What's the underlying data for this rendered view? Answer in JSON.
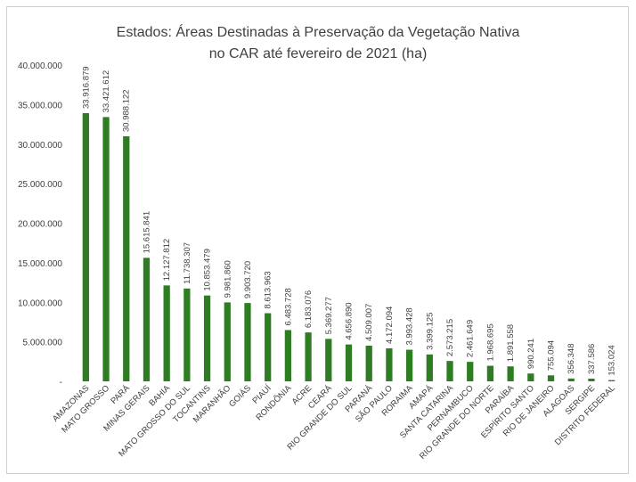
{
  "chart_data": {
    "type": "bar",
    "title": "Estados: Áreas Destinadas à Preservação da Vegetação Nativa",
    "subtitle": "no CAR até fevereiro de 2021 (ha)",
    "xlabel": "",
    "ylabel": "",
    "ylim": [
      0,
      40000000
    ],
    "yticks": [
      "-",
      "5.000.000",
      "10.000.000",
      "15.000.000",
      "20.000.000",
      "25.000.000",
      "30.000.000",
      "35.000.000",
      "40.000.000"
    ],
    "grid": false,
    "bar_color": "#2e7d23",
    "categories": [
      "AMAZONAS",
      "MATO GROSSO",
      "PARÁ",
      "MINAS GERAIS",
      "BAHIA",
      "MATO GROSSO DO SUL",
      "TOCANTINS",
      "MARANHÃO",
      "GOIÁS",
      "PIAUÍ",
      "RONDÔNIA",
      "ACRE",
      "CEARÁ",
      "RIO GRANDE DO SUL",
      "PARANÁ",
      "SÃO PAULO",
      "RORAIMA",
      "AMAPÁ",
      "SANTA CATARINA",
      "PERNAMBUCO",
      "RIO GRANDE DO NORTE",
      "PARAÍBA",
      "ESPÍRITO SANTO",
      "RIO DE JANEIRO",
      "ALAGOAS",
      "SERGIPE",
      "DISTRITO FEDERAL"
    ],
    "values": [
      33916879,
      33421612,
      30988122,
      15615841,
      12127812,
      11738307,
      10853479,
      9981860,
      9903720,
      8613963,
      6483728,
      6183076,
      5369277,
      4656890,
      4509007,
      4172094,
      3993428,
      3399125,
      2573215,
      2461649,
      1968695,
      1891558,
      990241,
      755094,
      356348,
      337586,
      153024
    ],
    "data_labels": [
      "33.916.879",
      "33.421.612",
      "30.988.122",
      "15.615.841",
      "12.127.812",
      "11.738.307",
      "10.853.479",
      "9.981.860",
      "9.903.720",
      "8.613.963",
      "6.483.728",
      "6.183.076",
      "5.369.277",
      "4.656.890",
      "4.509.007",
      "4.172.094",
      "3.993.428",
      "3.399.125",
      "2.573.215",
      "2.461.649",
      "1.968.695",
      "1.891.558",
      "990.241",
      "755.094",
      "356.348",
      "337.586",
      "153.024"
    ]
  }
}
